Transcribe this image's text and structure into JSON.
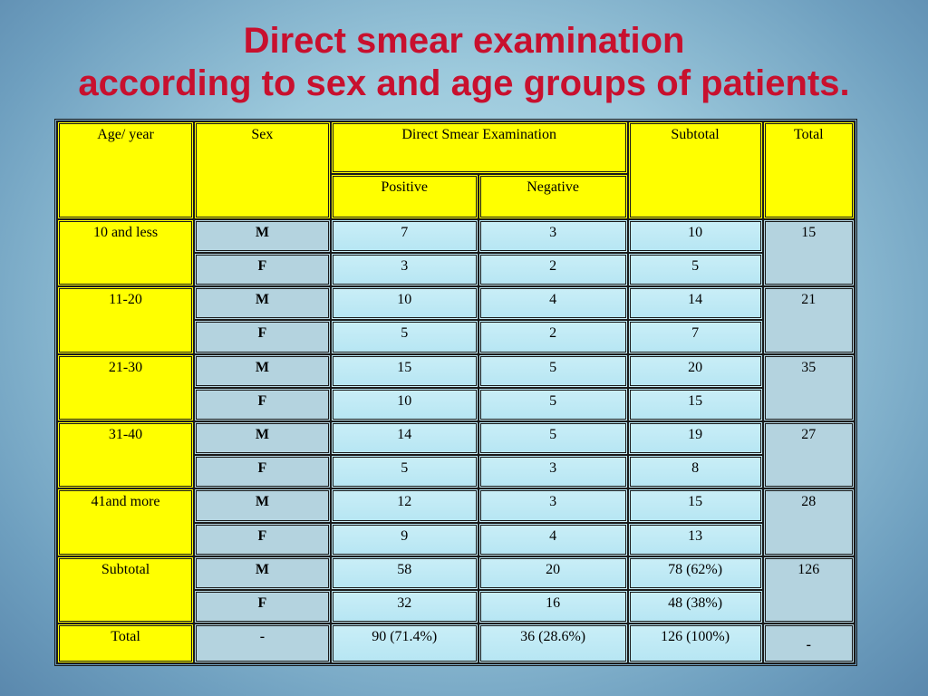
{
  "title": {
    "line1": "Direct smear examination",
    "line2": "according to sex and age groups of patients."
  },
  "headers": {
    "age": "Age/ year",
    "sex": "Sex",
    "dse": "Direct Smear Examination",
    "positive": "Positive",
    "negative": "Negative",
    "subtotal": "Subtotal",
    "total": "Total"
  },
  "groups": [
    {
      "age": "10 and less",
      "total": "15",
      "rows": [
        {
          "sex": "M",
          "pos": "7",
          "neg": "3",
          "sub": "10"
        },
        {
          "sex": "F",
          "pos": "3",
          "neg": "2",
          "sub": "5"
        }
      ]
    },
    {
      "age": "11-20",
      "total": "21",
      "rows": [
        {
          "sex": "M",
          "pos": "10",
          "neg": "4",
          "sub": "14"
        },
        {
          "sex": "F",
          "pos": "5",
          "neg": "2",
          "sub": "7"
        }
      ]
    },
    {
      "age": "21-30",
      "total": "35",
      "rows": [
        {
          "sex": "M",
          "pos": "15",
          "neg": "5",
          "sub": "20"
        },
        {
          "sex": "F",
          "pos": "10",
          "neg": "5",
          "sub": "15"
        }
      ]
    },
    {
      "age": "31-40",
      "total": "27",
      "rows": [
        {
          "sex": "M",
          "pos": "14",
          "neg": "5",
          "sub": "19"
        },
        {
          "sex": "F",
          "pos": "5",
          "neg": "3",
          "sub": "8"
        }
      ]
    },
    {
      "age": "41and more",
      "total": "28",
      "rows": [
        {
          "sex": "M",
          "pos": "12",
          "neg": "3",
          "sub": "15"
        },
        {
          "sex": "F",
          "pos": "9",
          "neg": "4",
          "sub": "13"
        }
      ]
    },
    {
      "age": "Subtotal",
      "total": "126",
      "rows": [
        {
          "sex": "M",
          "pos": "58",
          "neg": "20",
          "sub": "78 (62%)"
        },
        {
          "sex": "F",
          "pos": "32",
          "neg": "16",
          "sub": "48 (38%)"
        }
      ]
    }
  ],
  "total_row": {
    "age": "Total",
    "sex": "-",
    "pos": "90 (71.4%)",
    "neg": "36 (28.6%)",
    "sub": "126 (100%)",
    "total": "-"
  },
  "colors": {
    "title": "#c8102e",
    "header_fill": "#ffff00",
    "age_text": "#c8102e",
    "sex_fill": "#b4d3df",
    "value_fill": "#c0eaf5"
  }
}
